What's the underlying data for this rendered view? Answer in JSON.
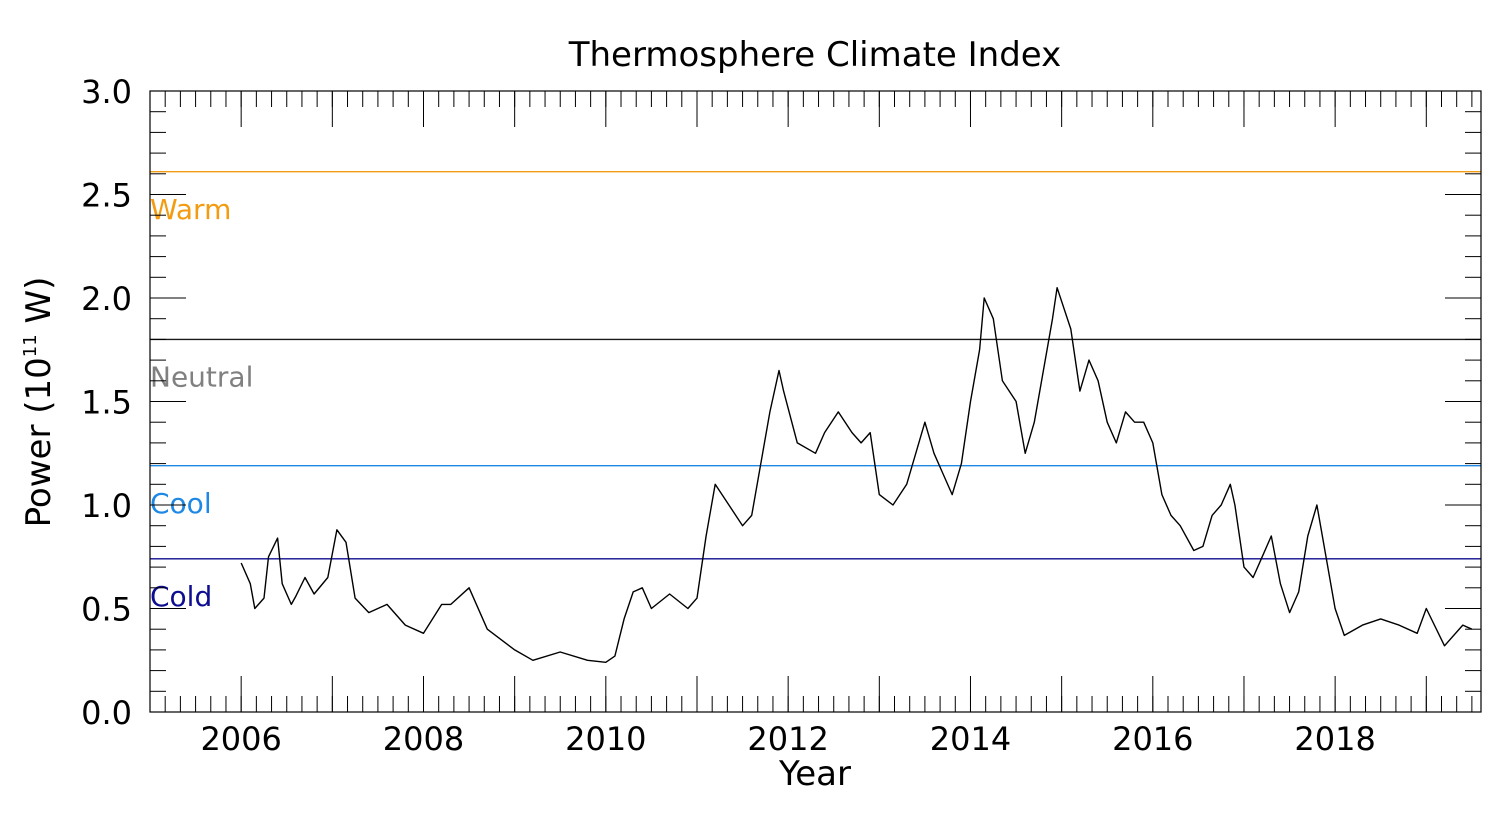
{
  "chart_data": {
    "type": "line",
    "title": "Thermosphere Climate Index",
    "xlabel": "Year",
    "ylabel_parts": {
      "prefix": "Power (10",
      "superscript": "11",
      "suffix": " W)"
    },
    "xlim": [
      2005.0,
      2019.6
    ],
    "ylim": [
      0.0,
      3.0
    ],
    "x_ticks": [
      2006,
      2008,
      2010,
      2012,
      2014,
      2016,
      2018
    ],
    "y_ticks": [
      "0.0",
      "0.5",
      "1.0",
      "1.5",
      "2.0",
      "2.5",
      "3.0"
    ],
    "grid": false,
    "line_color": "#000000",
    "thresholds": [
      {
        "name": "Warm",
        "value": 2.61,
        "color": "#f39c12",
        "label_color": "#f39c12",
        "label_y": 2.44
      },
      {
        "name": "Neutral",
        "value": 1.8,
        "color": "#1a1a1a",
        "label_color": "#808080",
        "label_y": 1.63
      },
      {
        "name": "Cool",
        "value": 1.19,
        "color": "#1e88e5",
        "label_color": "#1e88e5",
        "label_y": 1.02
      },
      {
        "name": "Cold",
        "value": 0.74,
        "color": "#0d0d8f",
        "label_color": "#0d0d8f",
        "label_y": 0.57
      }
    ],
    "series": [
      {
        "x": [
          2006.0,
          2006.1,
          2006.15,
          2006.25,
          2006.3,
          2006.4,
          2006.45,
          2006.55,
          2006.6,
          2006.7,
          2006.8,
          2006.95,
          2007.05,
          2007.15,
          2007.25,
          2007.4,
          2007.6,
          2007.8,
          2008.0,
          2008.2,
          2008.3,
          2008.5,
          2008.7,
          2009.0,
          2009.2,
          2009.5,
          2009.8,
          2010.0,
          2010.1,
          2010.2,
          2010.3,
          2010.4,
          2010.5,
          2010.7,
          2010.9,
          2011.0,
          2011.1,
          2011.2,
          2011.35,
          2011.5,
          2011.6,
          2011.8,
          2011.9,
          2011.95,
          2012.1,
          2012.3,
          2012.4,
          2012.55,
          2012.7,
          2012.8,
          2012.9,
          2013.0,
          2013.15,
          2013.3,
          2013.5,
          2013.6,
          2013.7,
          2013.8,
          2013.9,
          2014.0,
          2014.1,
          2014.15,
          2014.25,
          2014.35,
          2014.5,
          2014.6,
          2014.7,
          2014.8,
          2014.9,
          2014.95,
          2015.1,
          2015.2,
          2015.3,
          2015.4,
          2015.5,
          2015.6,
          2015.7,
          2015.8,
          2015.9,
          2016.0,
          2016.1,
          2016.2,
          2016.3,
          2016.45,
          2016.55,
          2016.65,
          2016.75,
          2016.85,
          2016.9,
          2017.0,
          2017.1,
          2017.2,
          2017.3,
          2017.4,
          2017.5,
          2017.6,
          2017.7,
          2017.8,
          2017.9,
          2018.0,
          2018.1,
          2018.3,
          2018.5,
          2018.7,
          2018.9,
          2019.0,
          2019.2,
          2019.4,
          2019.5
        ],
        "y": [
          0.72,
          0.62,
          0.5,
          0.55,
          0.75,
          0.84,
          0.62,
          0.52,
          0.56,
          0.65,
          0.57,
          0.65,
          0.88,
          0.82,
          0.55,
          0.48,
          0.52,
          0.42,
          0.38,
          0.52,
          0.52,
          0.6,
          0.4,
          0.3,
          0.25,
          0.29,
          0.25,
          0.24,
          0.27,
          0.45,
          0.58,
          0.6,
          0.5,
          0.57,
          0.5,
          0.55,
          0.85,
          1.1,
          1.0,
          0.9,
          0.95,
          1.45,
          1.65,
          1.55,
          1.3,
          1.25,
          1.35,
          1.45,
          1.35,
          1.3,
          1.35,
          1.05,
          1.0,
          1.1,
          1.4,
          1.25,
          1.15,
          1.05,
          1.2,
          1.5,
          1.75,
          2.0,
          1.9,
          1.6,
          1.5,
          1.25,
          1.4,
          1.65,
          1.9,
          2.05,
          1.85,
          1.55,
          1.7,
          1.6,
          1.4,
          1.3,
          1.45,
          1.4,
          1.4,
          1.3,
          1.05,
          0.95,
          0.9,
          0.78,
          0.8,
          0.95,
          1.0,
          1.1,
          1.0,
          0.7,
          0.65,
          0.75,
          0.85,
          0.62,
          0.48,
          0.58,
          0.85,
          1.0,
          0.75,
          0.5,
          0.37,
          0.42,
          0.45,
          0.42,
          0.38,
          0.5,
          0.32,
          0.42,
          0.4
        ]
      }
    ]
  }
}
